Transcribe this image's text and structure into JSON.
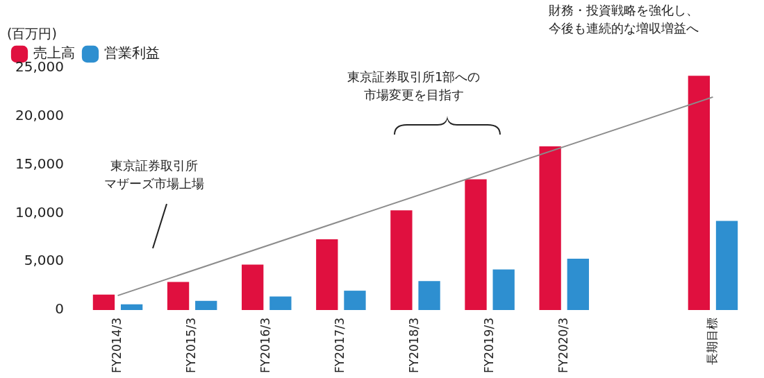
{
  "chart_data": {
    "type": "bar",
    "ylabel": "(百万円)",
    "categories": [
      "FY2014/3",
      "FY2015/3",
      "FY2016/3",
      "FY2017/3",
      "FY2018/3",
      "FY2019/3",
      "FY2020/3",
      null,
      "長期目標"
    ],
    "series": [
      {
        "name": "売上高",
        "color": "#e0103f",
        "values": [
          1600,
          2900,
          4700,
          7300,
          10300,
          13500,
          16900,
          null,
          24200
        ]
      },
      {
        "name": "営業利益",
        "color": "#2e8fd0",
        "values": [
          600,
          950,
          1400,
          2000,
          3000,
          4200,
          5300,
          null,
          9200
        ]
      },
      {
        "type": "line",
        "color": "#8c8c8c",
        "values": [
          1500,
          null,
          null,
          null,
          null,
          null,
          null,
          null,
          22000
        ]
      }
    ],
    "ylim": [
      0,
      25000
    ],
    "yticks": [
      0,
      {
        "value": 5000,
        "label": "5,000"
      },
      {
        "value": 10000,
        "label": "10,000"
      },
      {
        "value": 15000,
        "label": "15,000"
      },
      {
        "value": 20000,
        "label": "20,000"
      },
      {
        "value": 25000,
        "label": "25,000"
      }
    ],
    "grid": false,
    "legend": "top left",
    "marker": "none",
    "annotations": [
      "東京証券取引所マザーズ市場上場",
      "東京証券取引所1部への市場変更を目指す",
      "財務・投資戦略を強化し、今後も連続的な増収増益へ"
    ]
  }
}
